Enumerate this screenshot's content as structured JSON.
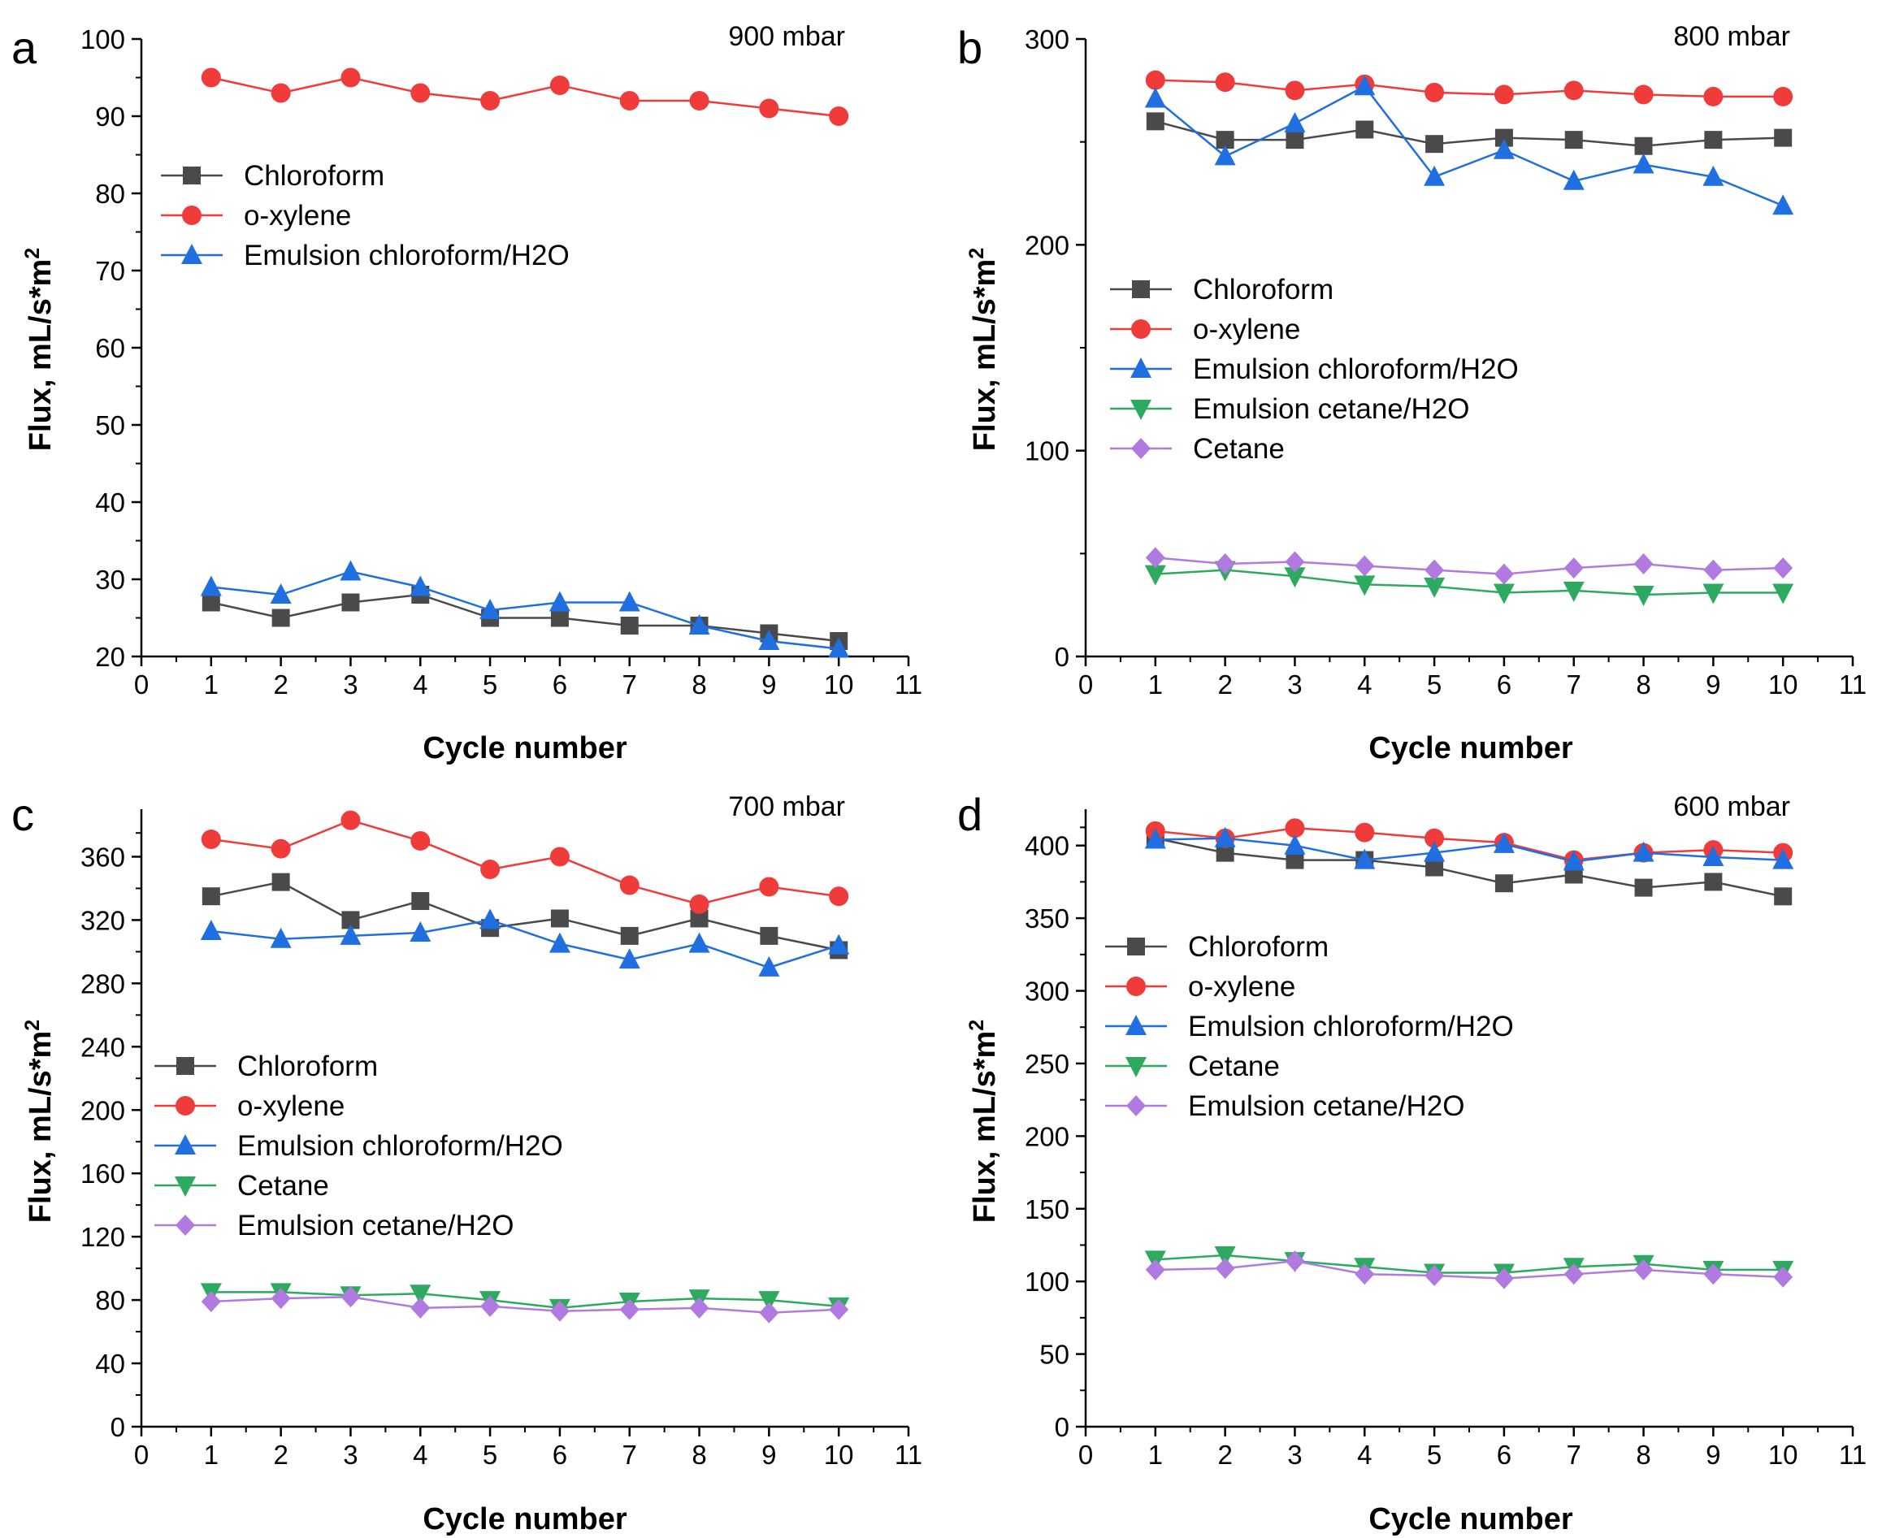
{
  "figure": {
    "background": "#ffffff",
    "axis_color": "#000000"
  },
  "series_styles": {
    "Chloroform": {
      "color": "#4a4a4a",
      "marker": "square"
    },
    "o-xylene": {
      "color": "#f03b3b",
      "marker": "circle"
    },
    "Emulsion chloroform/H2O": {
      "color": "#1f6fe0",
      "marker": "triangle-up"
    },
    "Emulsion cetane/H2O": {
      "color": "#2daa5f",
      "marker": "triangle-down"
    },
    "Cetane": {
      "color": "#b07ae0",
      "marker": "diamond"
    }
  },
  "panel_styles": {
    "c": {
      "Cetane": {
        "color": "#2daa5f",
        "marker": "triangle-down"
      },
      "Emulsion cetane/H2O": {
        "color": "#b07ae0",
        "marker": "diamond"
      }
    },
    "d": {
      "Cetane": {
        "color": "#2daa5f",
        "marker": "triangle-down"
      },
      "Emulsion cetane/H2O": {
        "color": "#b07ae0",
        "marker": "diamond"
      }
    }
  },
  "chart_data": [
    {
      "panel": "a",
      "type": "line",
      "title": "900 mbar",
      "xlabel": "Cycle number",
      "ylabel": "Flux, mL/s*m2",
      "ylabel_base": "Flux, mL/s*m",
      "ylabel_sup": "2",
      "xlim": [
        0,
        11
      ],
      "ylim": [
        20,
        100
      ],
      "xticks": [
        0,
        1,
        2,
        3,
        4,
        5,
        6,
        7,
        8,
        9,
        10,
        11
      ],
      "yticks": [
        20,
        30,
        40,
        50,
        60,
        70,
        80,
        90,
        100
      ],
      "legend_position": "upper-left",
      "x": [
        1,
        2,
        3,
        4,
        5,
        6,
        7,
        8,
        9,
        10
      ],
      "series": [
        {
          "name": "Chloroform",
          "values": [
            27,
            25,
            27,
            28,
            25,
            25,
            24,
            24,
            23,
            22
          ]
        },
        {
          "name": "o-xylene",
          "values": [
            95,
            93,
            95,
            93,
            92,
            94,
            92,
            92,
            91,
            90
          ]
        },
        {
          "name": "Emulsion chloroform/H2O",
          "values": [
            29,
            28,
            31,
            29,
            26,
            27,
            27,
            24,
            22,
            21
          ]
        }
      ]
    },
    {
      "panel": "b",
      "type": "line",
      "title": "800 mbar",
      "xlabel": "Cycle number",
      "ylabel": "Flux, mL/s*m2",
      "ylabel_base": "Flux, mL/s*m",
      "ylabel_sup": "2",
      "xlim": [
        0,
        11
      ],
      "ylim": [
        0,
        300
      ],
      "xticks": [
        0,
        1,
        2,
        3,
        4,
        5,
        6,
        7,
        8,
        9,
        10,
        11
      ],
      "yticks": [
        0,
        100,
        200,
        300
      ],
      "legend_position": "middle-left",
      "x": [
        1,
        2,
        3,
        4,
        5,
        6,
        7,
        8,
        9,
        10
      ],
      "series": [
        {
          "name": "Chloroform",
          "values": [
            260,
            251,
            251,
            256,
            249,
            252,
            251,
            248,
            251,
            252
          ]
        },
        {
          "name": "o-xylene",
          "values": [
            280,
            279,
            275,
            278,
            274,
            273,
            275,
            273,
            272,
            272
          ]
        },
        {
          "name": "Emulsion chloroform/H2O",
          "values": [
            271,
            243,
            259,
            277,
            233,
            246,
            231,
            239,
            233,
            219
          ]
        },
        {
          "name": "Emulsion cetane/H2O",
          "values": [
            40,
            42,
            39,
            35,
            34,
            31,
            32,
            30,
            31,
            31
          ]
        },
        {
          "name": "Cetane",
          "values": [
            48,
            45,
            46,
            44,
            42,
            40,
            43,
            45,
            42,
            43
          ]
        }
      ]
    },
    {
      "panel": "c",
      "type": "line",
      "title": "700 mbar",
      "xlabel": "Cycle number",
      "ylabel": "Flux, mL/s*m2",
      "ylabel_base": "Flux, mL/s*m",
      "ylabel_sup": "2",
      "xlim": [
        0,
        11
      ],
      "ylim": [
        0,
        390
      ],
      "xticks": [
        0,
        1,
        2,
        3,
        4,
        5,
        6,
        7,
        8,
        9,
        10,
        11
      ],
      "yticks": [
        0,
        40,
        80,
        120,
        160,
        200,
        240,
        280,
        320,
        360
      ],
      "legend_position": "middle-left",
      "x": [
        1,
        2,
        3,
        4,
        5,
        6,
        7,
        8,
        9,
        10
      ],
      "series": [
        {
          "name": "Chloroform",
          "values": [
            335,
            344,
            320,
            332,
            315,
            321,
            310,
            321,
            310,
            301
          ]
        },
        {
          "name": "o-xylene",
          "values": [
            371,
            365,
            383,
            370,
            352,
            360,
            342,
            330,
            341,
            335
          ]
        },
        {
          "name": "Emulsion chloroform/H2O",
          "values": [
            313,
            308,
            310,
            312,
            320,
            305,
            295,
            305,
            290,
            304
          ]
        },
        {
          "name": "Cetane",
          "values": [
            85,
            85,
            83,
            84,
            80,
            75,
            79,
            81,
            80,
            76
          ]
        },
        {
          "name": "Emulsion cetane/H2O",
          "values": [
            79,
            81,
            82,
            75,
            76,
            73,
            74,
            75,
            72,
            74
          ]
        }
      ]
    },
    {
      "panel": "d",
      "type": "line",
      "title": "600 mbar",
      "xlabel": "Cycle number",
      "ylabel": "Flux, mL/s*m2",
      "ylabel_base": "Flux, mL/s*m",
      "ylabel_sup": "2",
      "xlim": [
        0,
        11
      ],
      "ylim": [
        0,
        425
      ],
      "xticks": [
        0,
        1,
        2,
        3,
        4,
        5,
        6,
        7,
        8,
        9,
        10,
        11
      ],
      "yticks": [
        0,
        50,
        100,
        150,
        200,
        250,
        300,
        350,
        400
      ],
      "legend_position": "middle-left",
      "x": [
        1,
        2,
        3,
        4,
        5,
        6,
        7,
        8,
        9,
        10
      ],
      "series": [
        {
          "name": "Chloroform",
          "values": [
            405,
            395,
            390,
            390,
            385,
            374,
            380,
            371,
            375,
            365
          ]
        },
        {
          "name": "o-xylene",
          "values": [
            410,
            405,
            412,
            409,
            405,
            402,
            390,
            395,
            397,
            395
          ]
        },
        {
          "name": "Emulsion chloroform/H2O",
          "values": [
            404,
            405,
            400,
            390,
            395,
            401,
            389,
            395,
            392,
            390
          ]
        },
        {
          "name": "Cetane",
          "values": [
            115,
            118,
            114,
            110,
            106,
            106,
            110,
            112,
            108,
            108
          ]
        },
        {
          "name": "Emulsion cetane/H2O",
          "values": [
            108,
            109,
            114,
            105,
            104,
            102,
            105,
            108,
            105,
            103
          ]
        }
      ]
    }
  ]
}
